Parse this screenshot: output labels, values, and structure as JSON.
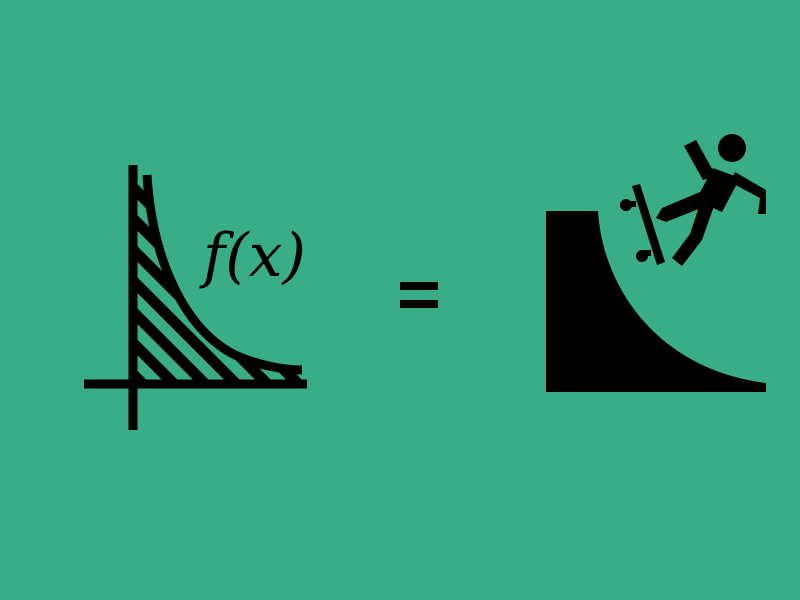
{
  "colors": {
    "background": "#38ad87",
    "ink": "#000000"
  },
  "equation": {
    "function_label": "f(x)",
    "operator": "="
  },
  "icons": {
    "left": "area-under-curve-graph-icon",
    "right": "skateboarder-falling-off-ramp-icon"
  }
}
